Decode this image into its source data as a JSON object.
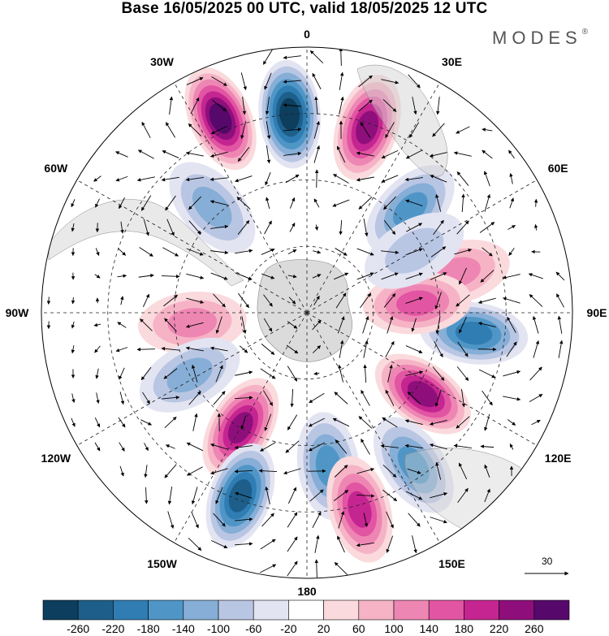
{
  "title": "Base 16/05/2025 00 UTC, valid 18/05/2025 12 UTC",
  "brand": {
    "name": "MODES",
    "mark": "®"
  },
  "longitude_labels": [
    {
      "label": "0",
      "lon": 0
    },
    {
      "label": "30E",
      "lon": 30
    },
    {
      "label": "60E",
      "lon": 60
    },
    {
      "label": "90E",
      "lon": 90
    },
    {
      "label": "120E",
      "lon": 120
    },
    {
      "label": "150E",
      "lon": 150
    },
    {
      "label": "180",
      "lon": 180
    },
    {
      "label": "150W",
      "lon": -150
    },
    {
      "label": "120W",
      "lon": -120
    },
    {
      "label": "90W",
      "lon": -90
    },
    {
      "label": "60W",
      "lon": -60
    },
    {
      "label": "30W",
      "lon": -30
    }
  ],
  "reference_vector": {
    "label": "30"
  },
  "colorbar": {
    "labels": [
      "-260",
      "-220",
      "-180",
      "-140",
      "-100",
      "-60",
      "-20",
      "20",
      "60",
      "100",
      "140",
      "180",
      "220",
      "260"
    ],
    "colors": [
      "#0d3e5e",
      "#1d5f8a",
      "#2f7db3",
      "#4f96c7",
      "#86aed6",
      "#b9c6e3",
      "#e3e4f2",
      "#ffffff",
      "#fadadd",
      "#f6b3c6",
      "#ee86b3",
      "#e255a3",
      "#c52590",
      "#8e0f7c",
      "#56086b"
    ]
  },
  "map_data": {
    "projection": "south-polar-stereographic",
    "anomalies": [
      {
        "lat": -42,
        "lon": -24,
        "value": 250
      },
      {
        "lat": -45,
        "lon": -5,
        "value": -250
      },
      {
        "lat": -46,
        "lon": 18,
        "value": 200
      },
      {
        "lat": -58,
        "lon": -42,
        "value": -110
      },
      {
        "lat": -57,
        "lon": 45,
        "value": -140
      },
      {
        "lat": -64,
        "lon": -95,
        "value": 110
      },
      {
        "lat": -55,
        "lon": 75,
        "value": 110
      },
      {
        "lat": -52,
        "lon": 97,
        "value": -190
      },
      {
        "lat": -65,
        "lon": 85,
        "value": 120
      },
      {
        "lat": -62,
        "lon": 60,
        "value": -60
      },
      {
        "lat": -60,
        "lon": -118,
        "value": -110
      },
      {
        "lat": -58,
        "lon": 125,
        "value": 230
      },
      {
        "lat": -60,
        "lon": -150,
        "value": 200
      },
      {
        "lat": -55,
        "lon": 172,
        "value": -150
      },
      {
        "lat": -48,
        "lon": 145,
        "value": -140
      },
      {
        "lat": -46,
        "lon": -160,
        "value": -220
      },
      {
        "lat": -44,
        "lon": 165,
        "value": 190
      }
    ]
  }
}
